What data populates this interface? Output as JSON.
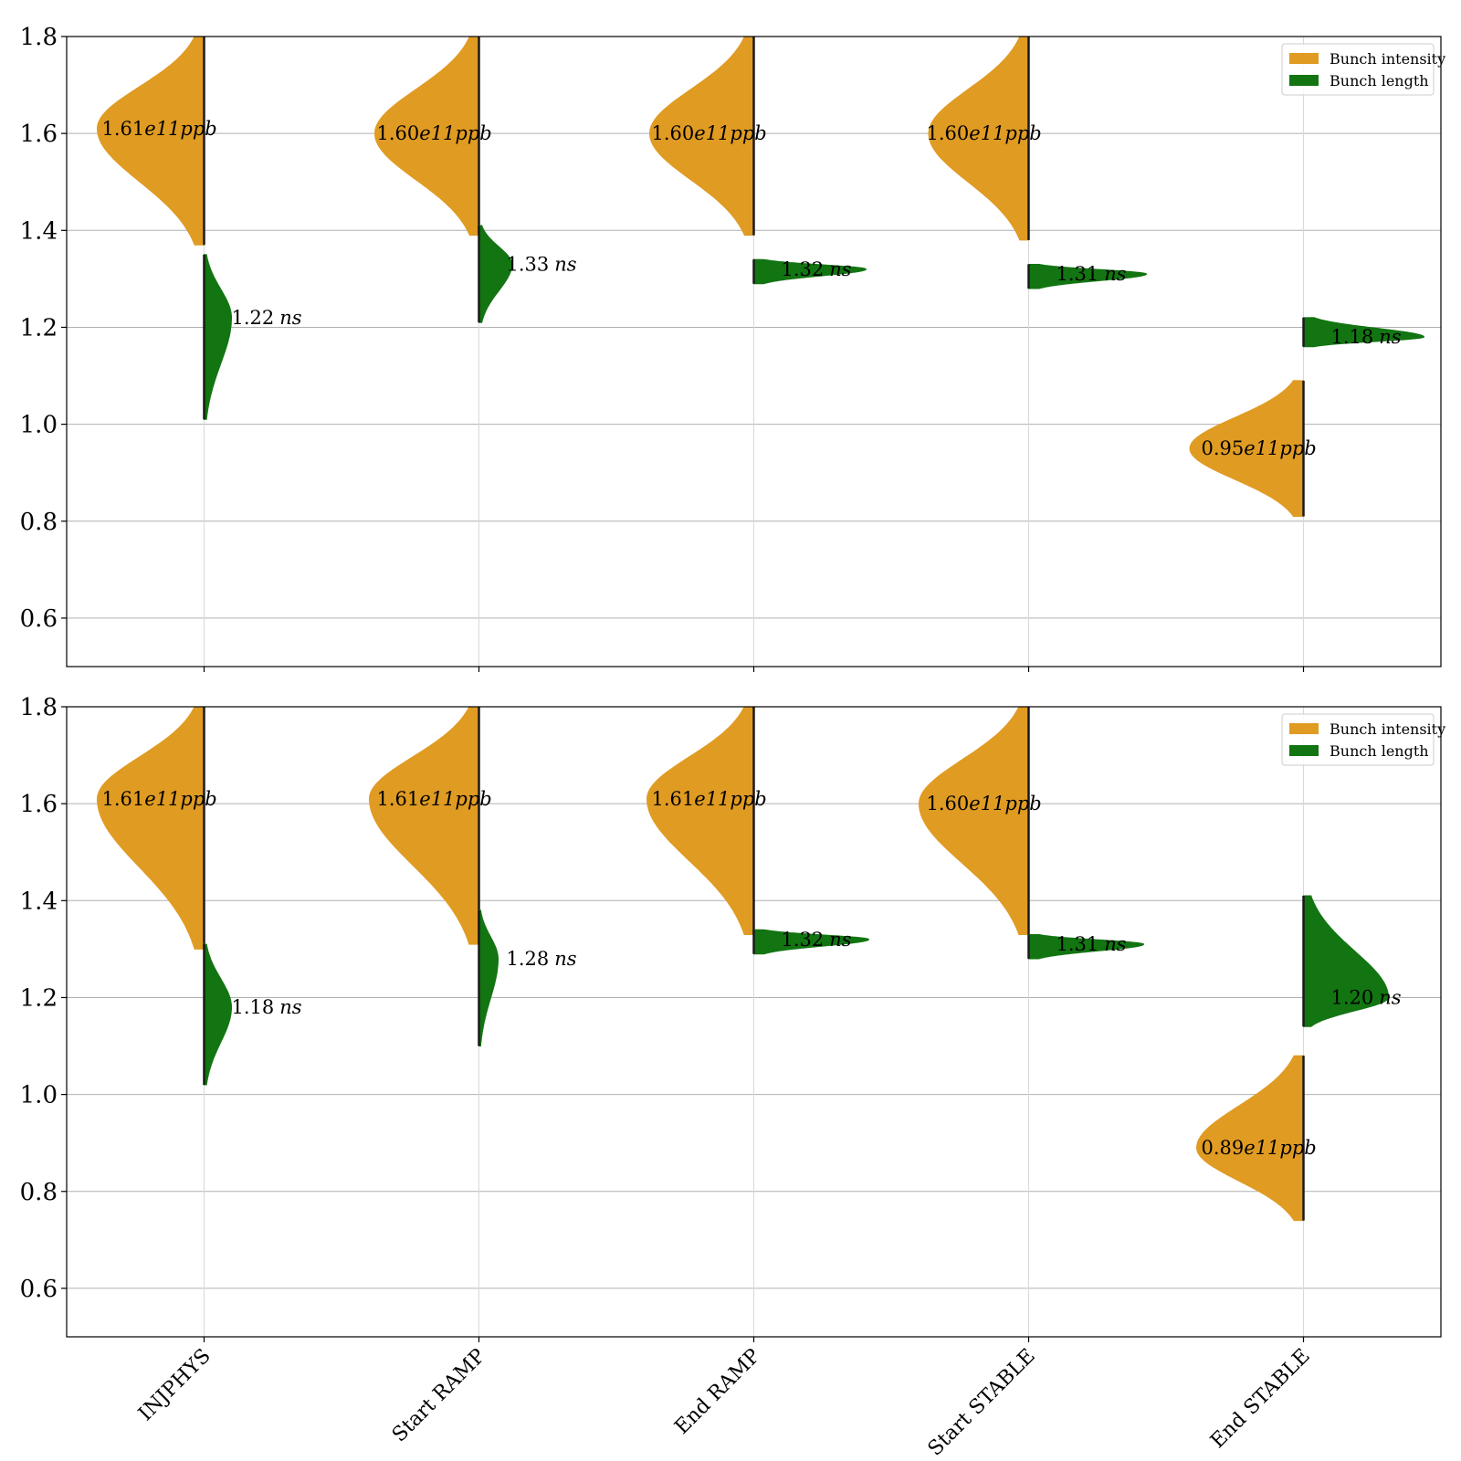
{
  "colors": {
    "intensity": "#e09b22",
    "length": "#127512",
    "grid": "#b0b0b0",
    "axes": "#000000"
  },
  "chart_data": [
    {
      "type": "violin",
      "ylim": [
        0.5,
        1.8
      ],
      "yticks": [
        0.6,
        0.8,
        1.0,
        1.2,
        1.4,
        1.6,
        1.8
      ],
      "ytick_labels": [
        "0.6",
        "0.8",
        "1.0",
        "1.2",
        "1.4",
        "1.6",
        "1.8"
      ],
      "grid": "horizontal",
      "legend": {
        "placement": "top-right",
        "entries": [
          "Bunch intensity",
          "Bunch length"
        ]
      },
      "categories": [
        "INJPHYS",
        "Start RAMP",
        "End RAMP",
        "Start STABLE",
        "End STABLE"
      ],
      "series": [
        {
          "name": "Bunch intensity",
          "side": "left",
          "color_key": "intensity",
          "unit": "e11ppb",
          "medians": [
            1.61,
            1.6,
            1.6,
            1.6,
            0.95
          ],
          "labels": [
            "1.61",
            "1.60",
            "1.60",
            "1.60",
            "0.95"
          ],
          "ranges": [
            [
              1.37,
              1.8
            ],
            [
              1.39,
              1.8
            ],
            [
              1.39,
              1.8
            ],
            [
              1.38,
              1.8
            ],
            [
              0.81,
              1.09
            ]
          ],
          "widths": [
            0.78,
            0.76,
            0.76,
            0.73,
            0.83
          ]
        },
        {
          "name": "Bunch length",
          "side": "right",
          "color_key": "length",
          "unit": "ns",
          "medians": [
            1.22,
            1.33,
            1.32,
            1.31,
            1.18
          ],
          "labels": [
            "1.22",
            "1.33",
            "1.32",
            "1.31",
            "1.18"
          ],
          "ranges": [
            [
              1.01,
              1.35
            ],
            [
              1.21,
              1.41
            ],
            [
              1.29,
              1.34
            ],
            [
              1.28,
              1.33
            ],
            [
              1.16,
              1.22
            ]
          ],
          "widths": [
            0.2,
            0.24,
            0.82,
            0.86,
            0.88
          ]
        }
      ]
    },
    {
      "type": "violin",
      "ylim": [
        0.5,
        1.8
      ],
      "yticks": [
        0.6,
        0.8,
        1.0,
        1.2,
        1.4,
        1.6,
        1.8
      ],
      "ytick_labels": [
        "0.6",
        "0.8",
        "1.0",
        "1.2",
        "1.4",
        "1.6",
        "1.8"
      ],
      "grid": "horizontal",
      "legend": {
        "placement": "top-right",
        "entries": [
          "Bunch intensity",
          "Bunch length"
        ]
      },
      "categories": [
        "INJPHYS",
        "Start RAMP",
        "End RAMP",
        "Start STABLE",
        "End STABLE"
      ],
      "series": [
        {
          "name": "Bunch intensity",
          "side": "left",
          "color_key": "intensity",
          "unit": "e11ppb",
          "medians": [
            1.61,
            1.61,
            1.61,
            1.6,
            0.89
          ],
          "labels": [
            "1.61",
            "1.61",
            "1.61",
            "1.60",
            "0.89"
          ],
          "ranges": [
            [
              1.3,
              1.8
            ],
            [
              1.31,
              1.8
            ],
            [
              1.33,
              1.8
            ],
            [
              1.33,
              1.8
            ],
            [
              0.74,
              1.08
            ]
          ],
          "widths": [
            0.78,
            0.8,
            0.78,
            0.8,
            0.78
          ]
        },
        {
          "name": "Bunch length",
          "side": "right",
          "color_key": "length",
          "unit": "ns",
          "medians": [
            1.18,
            1.28,
            1.32,
            1.31,
            1.2
          ],
          "labels": [
            "1.18",
            "1.28",
            "1.32",
            "1.31",
            "1.20"
          ],
          "ranges": [
            [
              1.02,
              1.31
            ],
            [
              1.1,
              1.38
            ],
            [
              1.29,
              1.34
            ],
            [
              1.28,
              1.33
            ],
            [
              1.14,
              1.41
            ]
          ],
          "widths": [
            0.2,
            0.14,
            0.84,
            0.84,
            0.62
          ]
        }
      ]
    }
  ]
}
